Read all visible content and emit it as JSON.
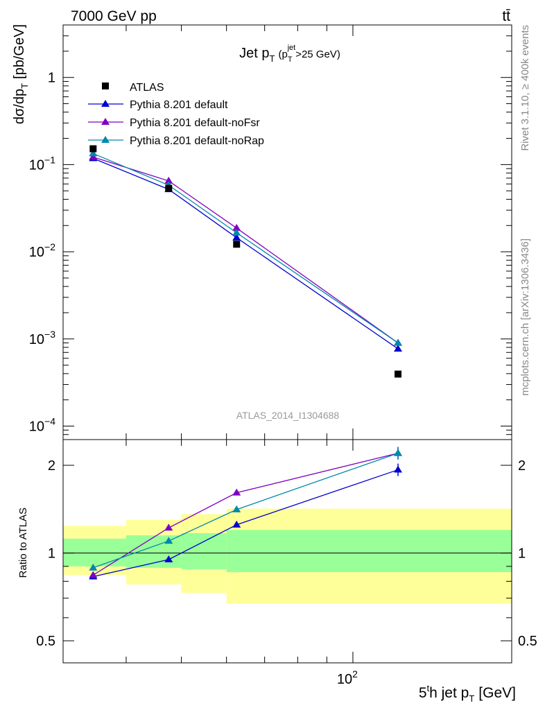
{
  "header": {
    "left": "7000 GeV pp",
    "right": "tt̄"
  },
  "side_text": {
    "rivet": "Rivet 3.1.10, ≥ 400k events",
    "mcplots": "mcplots.cern.ch [arXiv:1306.3436]"
  },
  "chart_data": [
    {
      "type": "line",
      "title_main": "Jet p",
      "title_sub_T": "T",
      "title_paren_open": "(p",
      "title_sup_jet": "jet",
      "title_paren_close": ">25 GeV)",
      "ylabel": "dσ/dp",
      "ylabel_sub": "T",
      "ylabel_unit": "[pb/GeV]",
      "yscale": "log",
      "ylim": [
        7e-05,
        4
      ],
      "xscale": "log",
      "xlim": [
        31,
        190
      ],
      "watermark": "ATLAS_2014_I1304688",
      "yticks": [
        {
          "value": 1,
          "label": "1"
        },
        {
          "value": 0.1,
          "base": "10",
          "exp": "−1"
        },
        {
          "value": 0.01,
          "base": "10",
          "exp": "−2"
        },
        {
          "value": 0.001,
          "base": "10",
          "exp": "−3"
        },
        {
          "value": 0.0001,
          "base": "10",
          "exp": "−4"
        }
      ],
      "legend_position": "top-left",
      "data_points": {
        "name": "ATLAS",
        "x": [
          35,
          47.5,
          62.5,
          120
        ],
        "y": [
          0.152,
          0.0535,
          0.0122,
          0.000395
        ]
      },
      "series": [
        {
          "name": "Pythia 8.201 default",
          "color": "#0000cc",
          "x": [
            35,
            47.5,
            62.5,
            120
          ],
          "y": [
            0.118,
            0.052,
            0.0145,
            0.00077
          ]
        },
        {
          "name": "Pythia 8.201 default-noFsr",
          "color": "#7f00bf",
          "x": [
            35,
            47.5,
            62.5,
            120
          ],
          "y": [
            0.122,
            0.065,
            0.0187,
            0.0009
          ]
        },
        {
          "name": "Pythia 8.201 default-noRap",
          "color": "#0088aa",
          "x": [
            35,
            47.5,
            62.5,
            120
          ],
          "y": [
            0.134,
            0.058,
            0.0165,
            0.0009
          ]
        }
      ]
    },
    {
      "type": "line",
      "ylabel": "Ratio to ATLAS",
      "yscale": "log",
      "ylim": [
        0.42,
        2.45
      ],
      "xscale": "log",
      "xlim": [
        31,
        190
      ],
      "xlabel_pre": "5",
      "xlabel_sup": "t",
      "xlabel_mid": "h jet p",
      "xlabel_sub": "T",
      "xlabel_unit": "[GeV]",
      "xtick_base": "10",
      "xtick_exp": "2",
      "xtick_value": 100,
      "yticks": [
        {
          "value": 2,
          "label": "2"
        },
        {
          "value": 1,
          "label": "1"
        },
        {
          "value": 0.5,
          "label": "0.5"
        }
      ],
      "uncertainty_bands": [
        {
          "x_range": [
            31,
            40
          ],
          "stat_syst": [
            0.84,
            1.24
          ],
          "stat": [
            0.9,
            1.12
          ]
        },
        {
          "x_range": [
            40,
            50
          ],
          "stat_syst": [
            0.78,
            1.3
          ],
          "stat": [
            0.89,
            1.15
          ]
        },
        {
          "x_range": [
            50,
            60
          ],
          "stat_syst": [
            0.73,
            1.36
          ],
          "stat": [
            0.88,
            1.17
          ]
        },
        {
          "x_range": [
            60,
            190
          ],
          "stat_syst": [
            0.67,
            1.42
          ],
          "stat": [
            0.86,
            1.2
          ]
        }
      ],
      "band_colors": {
        "stat_syst": "#ffff99",
        "stat": "#99ff99"
      },
      "series": [
        {
          "name": "Pythia 8.201 default",
          "color": "#0000cc",
          "x": [
            35,
            47.5,
            62.5,
            120
          ],
          "y": [
            0.83,
            0.95,
            1.25,
            1.93
          ]
        },
        {
          "name": "Pythia 8.201 default-noFsr",
          "color": "#7f00bf",
          "x": [
            35,
            47.5,
            62.5,
            120
          ],
          "y": [
            0.84,
            1.22,
            1.61,
            2.2
          ]
        },
        {
          "name": "Pythia 8.201 default-noRap",
          "color": "#0088aa",
          "x": [
            35,
            47.5,
            62.5,
            120
          ],
          "y": [
            0.89,
            1.1,
            1.41,
            2.2
          ]
        }
      ]
    }
  ]
}
